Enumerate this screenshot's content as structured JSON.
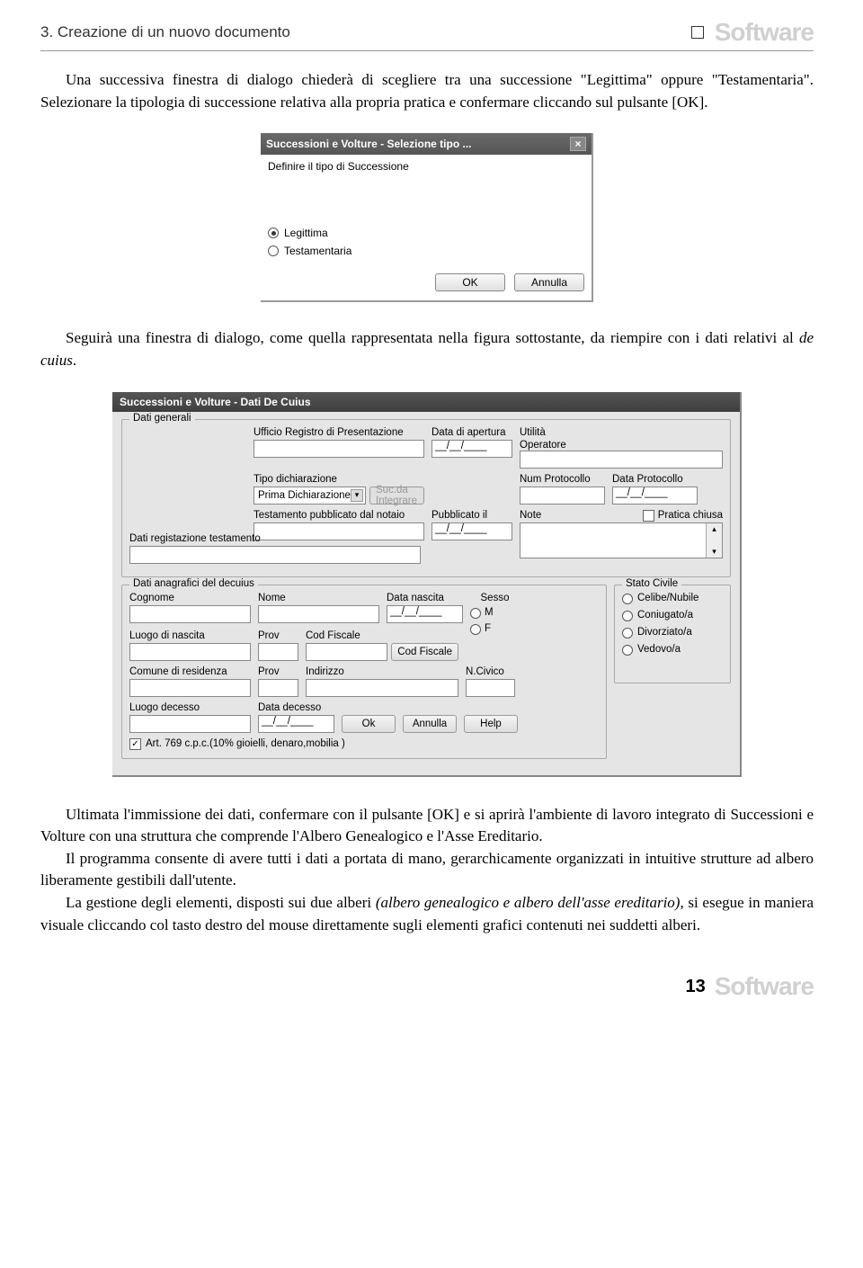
{
  "header": {
    "chapter": "3. Creazione di un nuovo documento",
    "logo": "Software"
  },
  "para1": "Una successiva finestra di dialogo chiederà di scegliere tra una successione \"Legittima\" oppure \"Testamentaria\". Selezionare la tipologia di successione relativa alla propria pratica e confermare cliccando sul pulsante [OK].",
  "dialog1": {
    "title": "Successioni e Volture - Selezione tipo ...",
    "prompt": "Definire il tipo di Successione",
    "opt1": "Legittima",
    "opt2": "Testamentaria",
    "ok": "OK",
    "cancel": "Annulla"
  },
  "para2": "Seguirà una finestra di dialogo, come quella rappresentata nella figura sottostante, da riempire con i dati relativi al de cuius.",
  "dialog2": {
    "title": "Successioni e Volture - Dati De Cuius",
    "fs1": "Dati generali",
    "ufficio": "Ufficio Registro di Presentazione",
    "data_apertura": "Data di apertura",
    "date_placeholder": "__/__/____",
    "utilita": "Utilità",
    "operatore": "Operatore",
    "tipo_dich": "Tipo dichiarazione",
    "prima": "Prima Dichiarazione",
    "suc_integ": "Suc.da Integrare",
    "num_prot": "Num Protocollo",
    "data_prot": "Data Protocollo",
    "testamento": "Testamento pubblicato dal notaio",
    "pubblicato": "Pubblicato il",
    "note": "Note",
    "pratica": "Pratica chiusa",
    "dati_reg": "Dati registazione testamento",
    "fs2": "Dati anagrafici del decuius",
    "cognome": "Cognome",
    "nome": "Nome",
    "data_nascita": "Data nascita",
    "sesso": "Sesso",
    "m": "M",
    "f": "F",
    "stato_civile": "Stato Civile",
    "celibe": "Celibe/Nubile",
    "coniugato": "Coniugato/a",
    "divorziato": "Divorziato/a",
    "vedovo": "Vedovo/a",
    "luogo_nascita": "Luogo di nascita",
    "prov": "Prov",
    "cod_fiscale": "Cod Fiscale",
    "cod_fiscale_btn": "Cod Fiscale",
    "comune": "Comune di residenza",
    "indirizzo": "Indirizzo",
    "ncivico": "N.Civico",
    "luogo_decesso": "Luogo decesso",
    "data_decesso": "Data decesso",
    "ok": "Ok",
    "annulla": "Annulla",
    "help": "Help",
    "art769": "Art. 769  c.p.c.(10% gioielli, denaro,mobilia )"
  },
  "para3a": "Ultimata l'immissione dei dati, confermare con il pulsante [OK] e si aprirà l'ambiente di lavoro integrato di Successioni e Volture con una struttura che comprende l'Albero Genealogico e l'Asse Ereditario.",
  "para3b": "Il programma consente di avere tutti i dati a portata di mano, gerarchicamente organizzati in intuitive strutture ad albero liberamente gestibili dall'utente.",
  "para3c": "La gestione degli elementi, disposti sui due alberi (albero genealogico e albero dell'asse ereditario), si esegue in maniera visuale cliccando col tasto destro del mouse direttamente sugli elementi grafici contenuti nei suddetti alberi.",
  "footer": {
    "page": "13",
    "logo": "Software"
  }
}
